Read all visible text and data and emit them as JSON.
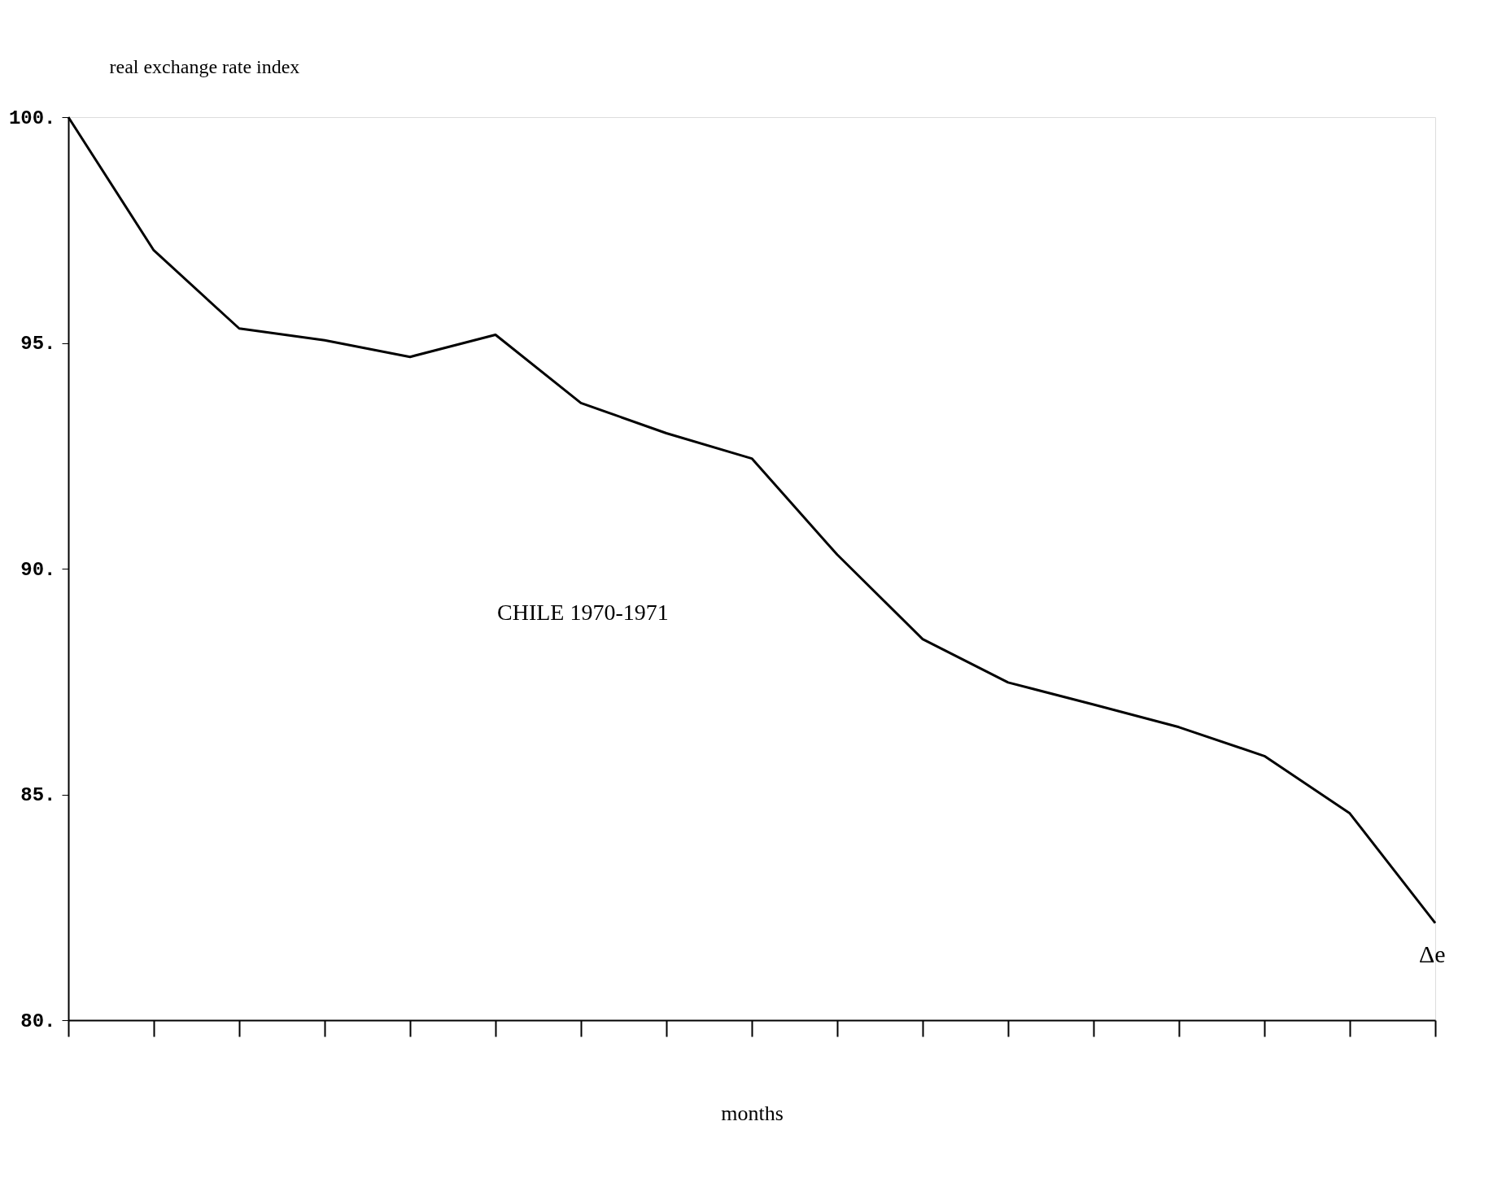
{
  "chart_data": {
    "type": "line",
    "ylabel": "real exchange rate index",
    "xlabel": "months",
    "categories": [
      null,
      null,
      null,
      null,
      null,
      null,
      null,
      null,
      null,
      null,
      null,
      null,
      null,
      null,
      null,
      null,
      null
    ],
    "values": [
      100,
      97.05,
      95.32,
      95.06,
      94.69,
      95.18,
      93.67,
      93.0,
      92.44,
      90.31,
      88.44,
      87.48,
      86.99,
      86.49,
      85.85,
      84.58,
      82.15
    ],
    "color": "#000000",
    "ylim": [
      80,
      100
    ],
    "yticks": [
      {
        "value": 80,
        "label": "80."
      },
      {
        "value": 85,
        "label": "85."
      },
      {
        "value": 90,
        "label": "90."
      },
      {
        "value": 95,
        "label": "95."
      },
      {
        "value": 100,
        "label": "100."
      }
    ],
    "grid": false,
    "marker": "none",
    "line_style": "solid",
    "tick_labels": "y",
    "annotations": [
      "CHILE 1970-1971",
      "Δe"
    ]
  }
}
